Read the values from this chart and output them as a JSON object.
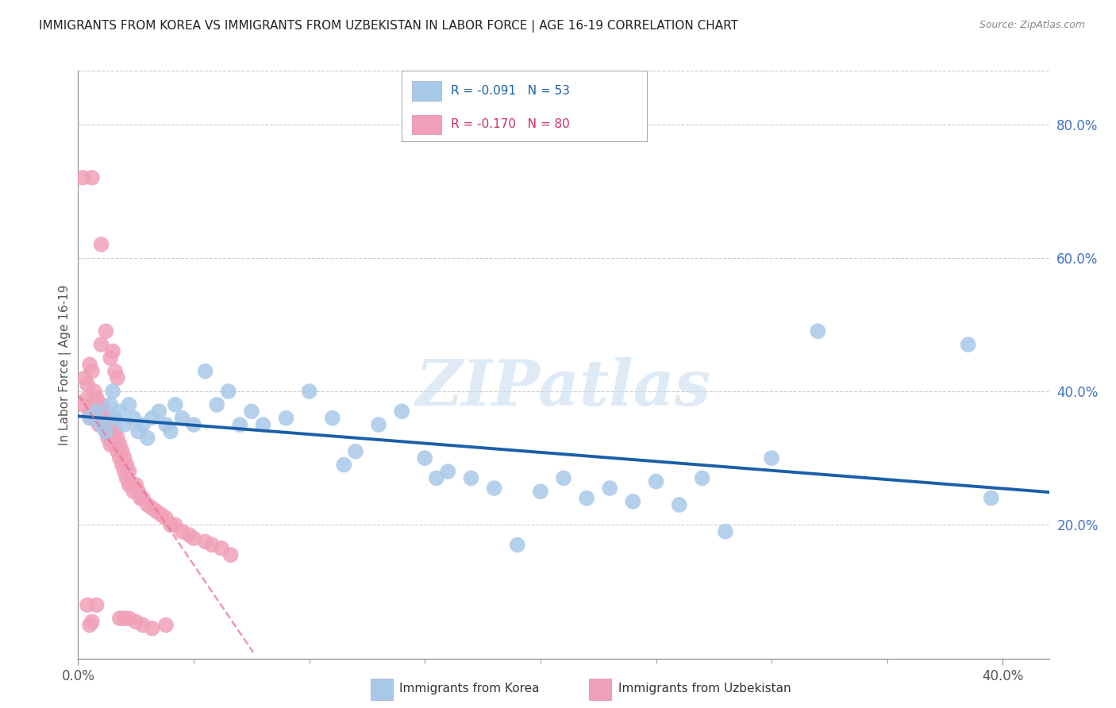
{
  "title": "IMMIGRANTS FROM KOREA VS IMMIGRANTS FROM UZBEKISTAN IN LABOR FORCE | AGE 16-19 CORRELATION CHART",
  "source": "Source: ZipAtlas.com",
  "ylabel": "In Labor Force | Age 16-19",
  "xlim": [
    0.0,
    0.42
  ],
  "ylim": [
    0.0,
    0.88
  ],
  "xtick_vals": [
    0.0,
    0.4
  ],
  "xtick_labels": [
    "0.0%",
    "40.0%"
  ],
  "ytick_vals_right": [
    0.2,
    0.4,
    0.6,
    0.8
  ],
  "ytick_labels_right": [
    "20.0%",
    "40.0%",
    "60.0%",
    "80.0%"
  ],
  "korea_color": "#a8c8e8",
  "uzbekistan_color": "#f0a0b8",
  "korea_line_color": "#1a5fa8",
  "uzbekistan_line_color": "#e87090",
  "watermark_color": "#c8dff0",
  "legend_korea_text": "R = -0.091   N = 53",
  "legend_uzbek_text": "R = -0.170   N = 80",
  "korea_x": [
    0.005,
    0.008,
    0.01,
    0.012,
    0.014,
    0.015,
    0.016,
    0.018,
    0.02,
    0.022,
    0.024,
    0.026,
    0.028,
    0.03,
    0.032,
    0.035,
    0.038,
    0.04,
    0.042,
    0.045,
    0.05,
    0.055,
    0.06,
    0.065,
    0.07,
    0.075,
    0.08,
    0.09,
    0.1,
    0.11,
    0.115,
    0.12,
    0.13,
    0.14,
    0.15,
    0.155,
    0.16,
    0.17,
    0.18,
    0.19,
    0.2,
    0.21,
    0.22,
    0.23,
    0.24,
    0.25,
    0.26,
    0.27,
    0.28,
    0.3,
    0.32,
    0.385,
    0.395
  ],
  "korea_y": [
    0.36,
    0.37,
    0.35,
    0.34,
    0.38,
    0.4,
    0.36,
    0.37,
    0.35,
    0.38,
    0.36,
    0.34,
    0.35,
    0.33,
    0.36,
    0.37,
    0.35,
    0.34,
    0.38,
    0.36,
    0.35,
    0.43,
    0.38,
    0.4,
    0.35,
    0.37,
    0.35,
    0.36,
    0.4,
    0.36,
    0.29,
    0.31,
    0.35,
    0.37,
    0.3,
    0.27,
    0.28,
    0.27,
    0.255,
    0.17,
    0.25,
    0.27,
    0.24,
    0.255,
    0.235,
    0.265,
    0.23,
    0.27,
    0.19,
    0.3,
    0.49,
    0.47,
    0.24
  ],
  "uzbek_x": [
    0.002,
    0.003,
    0.004,
    0.004,
    0.005,
    0.005,
    0.006,
    0.006,
    0.007,
    0.007,
    0.008,
    0.008,
    0.009,
    0.009,
    0.01,
    0.01,
    0.011,
    0.011,
    0.012,
    0.012,
    0.013,
    0.013,
    0.014,
    0.014,
    0.015,
    0.015,
    0.016,
    0.016,
    0.017,
    0.017,
    0.018,
    0.018,
    0.019,
    0.019,
    0.02,
    0.02,
    0.021,
    0.021,
    0.022,
    0.022,
    0.023,
    0.024,
    0.025,
    0.026,
    0.027,
    0.028,
    0.03,
    0.032,
    0.034,
    0.036,
    0.038,
    0.04,
    0.042,
    0.045,
    0.048,
    0.05,
    0.055,
    0.058,
    0.062,
    0.066,
    0.002,
    0.006,
    0.004,
    0.008,
    0.01,
    0.01,
    0.012,
    0.014,
    0.015,
    0.016,
    0.017,
    0.018,
    0.02,
    0.022,
    0.025,
    0.028,
    0.032,
    0.038,
    0.005,
    0.006
  ],
  "uzbek_y": [
    0.38,
    0.42,
    0.41,
    0.39,
    0.37,
    0.44,
    0.36,
    0.43,
    0.37,
    0.4,
    0.36,
    0.39,
    0.37,
    0.35,
    0.36,
    0.38,
    0.35,
    0.37,
    0.34,
    0.36,
    0.33,
    0.35,
    0.32,
    0.34,
    0.33,
    0.35,
    0.32,
    0.34,
    0.31,
    0.33,
    0.3,
    0.32,
    0.29,
    0.31,
    0.28,
    0.3,
    0.27,
    0.29,
    0.26,
    0.28,
    0.26,
    0.25,
    0.26,
    0.25,
    0.24,
    0.24,
    0.23,
    0.225,
    0.22,
    0.215,
    0.21,
    0.2,
    0.2,
    0.19,
    0.185,
    0.18,
    0.175,
    0.17,
    0.165,
    0.155,
    0.72,
    0.72,
    0.08,
    0.08,
    0.62,
    0.47,
    0.49,
    0.45,
    0.46,
    0.43,
    0.42,
    0.06,
    0.06,
    0.06,
    0.055,
    0.05,
    0.045,
    0.05,
    0.05,
    0.055
  ]
}
